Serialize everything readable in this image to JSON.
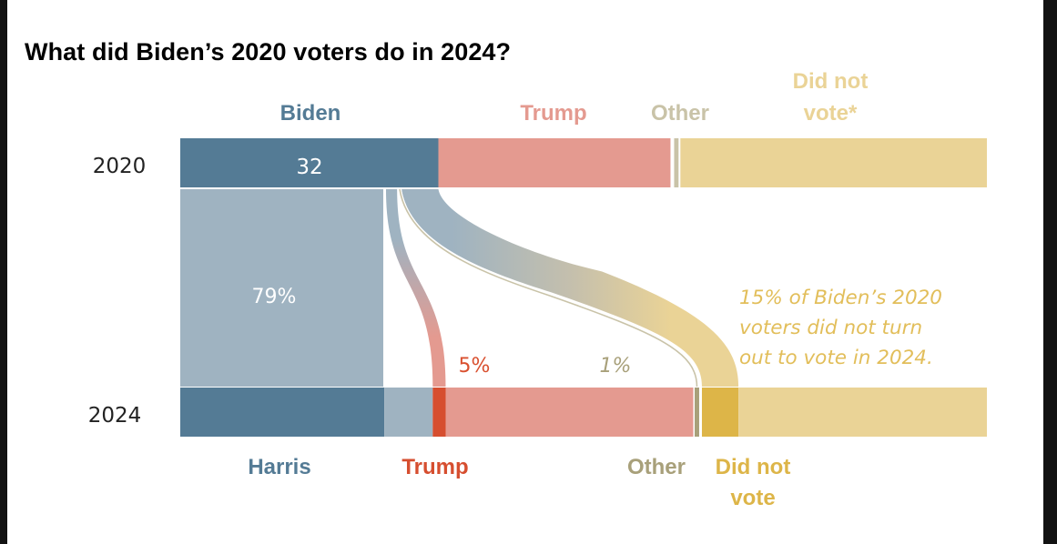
{
  "title": "What did Biden’s 2020 voters do in 2024?",
  "colors": {
    "biden": "#547B95",
    "biden_light": "#9FB3C1",
    "trump": "#E49A90",
    "trump_dark": "#D64E2F",
    "other": "#C9C3A8",
    "other_dark": "#A8A07A",
    "dnv": "#EAD396",
    "dnv_dark": "#DDB548",
    "frame": "#121212"
  },
  "chart_data": {
    "type": "sankey",
    "title": "What did Biden’s 2020 voters do in 2024?",
    "units": "percent of adult citizens (bar shares); percent of Biden 2020 voters (flow labels)",
    "rows": [
      {
        "year": "2020",
        "segments": [
          {
            "key": "biden",
            "label": "Biden",
            "value": 32,
            "value_label": "32"
          },
          {
            "key": "trump",
            "label": "Trump",
            "value": 29
          },
          {
            "key": "other",
            "label": "Other",
            "value": 1
          },
          {
            "key": "dnv",
            "label": "Did not vote*",
            "value": 38
          }
        ]
      },
      {
        "year": "2024",
        "segments": [
          {
            "key": "harris_from_biden",
            "label": "Harris",
            "group": "Harris",
            "value": 25.3
          },
          {
            "key": "harris_other_sources",
            "group": "Harris",
            "value": 6.0
          },
          {
            "key": "trump_from_biden",
            "label": "Trump",
            "group": "Trump",
            "value": 1.6
          },
          {
            "key": "trump_other_sources",
            "group": "Trump",
            "value": 30.7
          },
          {
            "key": "other_2024",
            "label": "Other",
            "group": "Other",
            "value": 0.9
          },
          {
            "key": "dnv_from_biden",
            "label": "Did not vote",
            "group": "Did not vote",
            "value": 4.7
          },
          {
            "key": "dnv_other_sources",
            "group": "Did not vote",
            "value": 30.8
          }
        ]
      }
    ],
    "flows": [
      {
        "from": "Biden 2020",
        "to": "Harris 2024",
        "share_of_biden_voters": 79,
        "label": "79%"
      },
      {
        "from": "Biden 2020",
        "to": "Trump 2024",
        "share_of_biden_voters": 5,
        "label": "5%"
      },
      {
        "from": "Biden 2020",
        "to": "Other 2024",
        "share_of_biden_voters": 1,
        "label": "1%"
      },
      {
        "from": "Biden 2020",
        "to": "Did not vote 2024",
        "share_of_biden_voters": 15,
        "label": "15%"
      }
    ],
    "top_labels": [
      "Biden",
      "Trump",
      "Other",
      "Did not\nvote*"
    ],
    "bottom_labels": [
      "Harris",
      "Trump",
      "Other",
      "Did not\nvote"
    ],
    "annotation": "15% of Biden’s 2020 voters did not turn out to vote in 2024."
  },
  "labels": {
    "year_top": "2020",
    "year_bottom": "2024",
    "biden_value": "32",
    "top": {
      "biden": "Biden",
      "trump": "Trump",
      "other": "Other",
      "dnv_1": "Did not",
      "dnv_2": "vote*"
    },
    "bottom": {
      "harris": "Harris",
      "trump": "Trump",
      "other": "Other",
      "dnv_1": "Did not",
      "dnv_2": "vote"
    },
    "flow_pct": {
      "harris": "79%",
      "trump": "5%",
      "other": "1%"
    },
    "annotation_lines": [
      "15% of Biden’s 2020",
      "voters did not turn",
      "out to vote in 2024."
    ]
  }
}
